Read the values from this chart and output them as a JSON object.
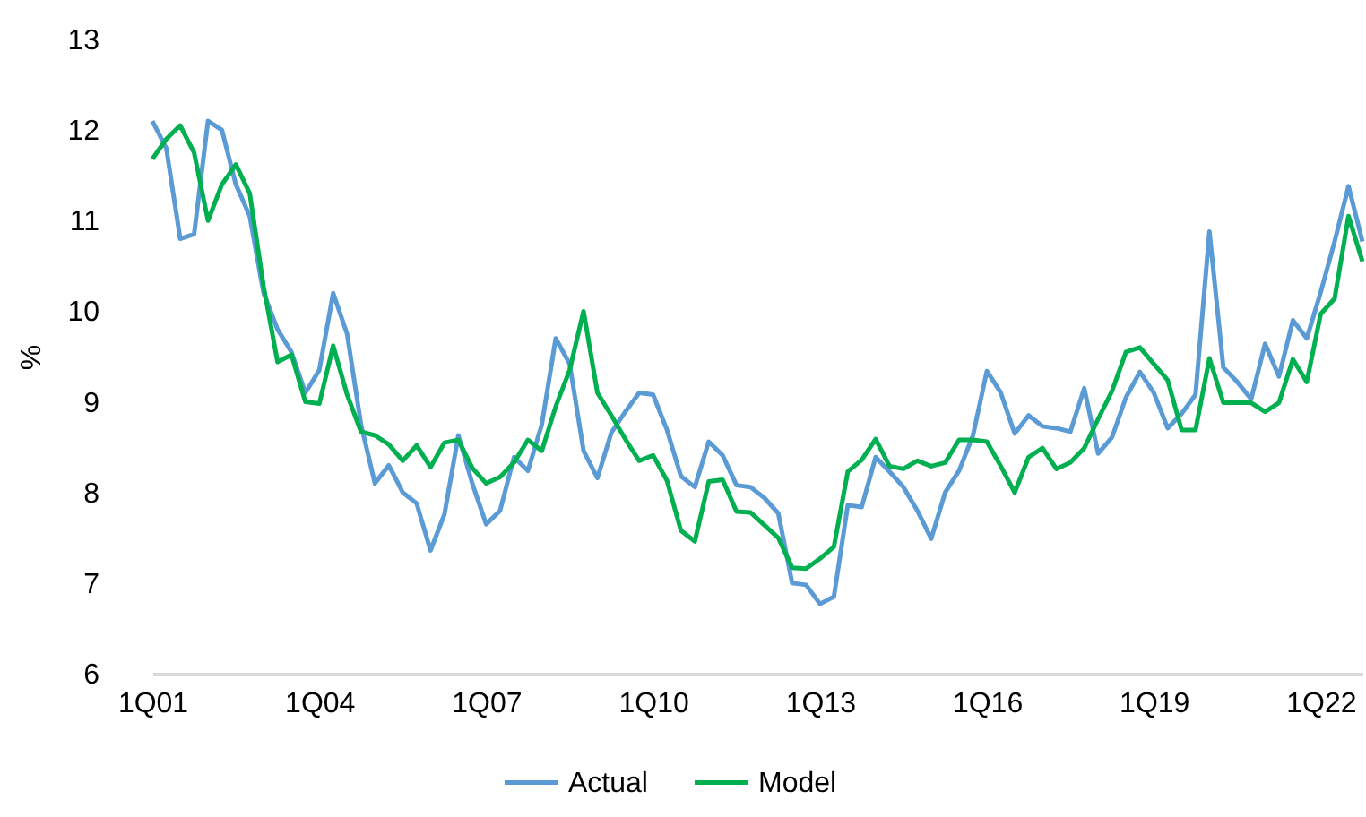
{
  "chart_data": {
    "type": "line",
    "ylabel": "%",
    "categories": [
      "1Q01",
      null,
      null,
      null,
      null,
      null,
      null,
      null,
      null,
      null,
      null,
      null,
      "1Q04",
      null,
      null,
      null,
      null,
      null,
      null,
      null,
      null,
      null,
      null,
      null,
      "1Q07",
      null,
      null,
      null,
      null,
      null,
      null,
      null,
      null,
      null,
      null,
      null,
      "1Q10",
      null,
      null,
      null,
      null,
      null,
      null,
      null,
      null,
      null,
      null,
      null,
      "1Q13",
      null,
      null,
      null,
      null,
      null,
      null,
      null,
      null,
      null,
      null,
      null,
      "1Q16",
      null,
      null,
      null,
      null,
      null,
      null,
      null,
      null,
      null,
      null,
      null,
      "1Q19",
      null,
      null,
      null,
      null,
      null,
      null,
      null,
      null,
      null,
      null,
      null,
      "1Q22",
      null,
      null,
      null
    ],
    "series": [
      {
        "name": "Actual",
        "color": "#5b9bd5",
        "values": [
          12.1,
          11.8,
          10.8,
          10.85,
          12.1,
          12.0,
          11.4,
          11.05,
          10.2,
          9.8,
          9.55,
          9.1,
          9.35,
          10.2,
          9.75,
          8.75,
          8.1,
          8.3,
          8.0,
          7.88,
          7.36,
          7.76,
          8.63,
          8.1,
          7.65,
          7.8,
          8.39,
          8.24,
          8.75,
          9.7,
          9.42,
          8.46,
          8.16,
          8.66,
          8.89,
          9.1,
          9.08,
          8.69,
          8.18,
          8.06,
          8.56,
          8.41,
          8.08,
          8.06,
          7.94,
          7.77,
          7.0,
          6.98,
          6.77,
          6.85,
          7.86,
          7.84,
          8.39,
          8.23,
          8.06,
          7.8,
          7.49,
          8.0,
          8.24,
          8.63,
          9.34,
          9.1,
          8.65,
          8.85,
          8.73,
          8.71,
          8.67,
          9.15,
          8.43,
          8.61,
          9.05,
          9.33,
          9.1,
          8.71,
          8.87,
          9.08,
          10.88,
          9.38,
          9.22,
          9.03,
          9.64,
          9.28,
          9.9,
          9.7,
          10.21,
          10.77,
          11.38,
          10.77
        ]
      },
      {
        "name": "Model",
        "color": "#00b050",
        "values": [
          11.68,
          11.9,
          12.05,
          11.75,
          11.0,
          11.4,
          11.62,
          11.3,
          10.27,
          9.44,
          9.52,
          9.0,
          8.98,
          9.62,
          9.08,
          8.67,
          8.63,
          8.53,
          8.35,
          8.52,
          8.28,
          8.55,
          8.58,
          8.27,
          8.1,
          8.17,
          8.33,
          8.58,
          8.46,
          8.95,
          9.35,
          10.0,
          9.1,
          8.85,
          8.59,
          8.35,
          8.41,
          8.13,
          7.58,
          7.46,
          8.12,
          8.14,
          7.79,
          7.78,
          7.64,
          7.5,
          7.17,
          7.16,
          7.27,
          7.4,
          8.23,
          8.36,
          8.59,
          8.29,
          8.26,
          8.35,
          8.29,
          8.33,
          8.58,
          8.58,
          8.56,
          8.29,
          8.0,
          8.39,
          8.49,
          8.26,
          8.33,
          8.49,
          8.81,
          9.12,
          9.55,
          9.6,
          9.42,
          9.24,
          8.69,
          8.69,
          9.48,
          8.99,
          8.99,
          8.99,
          8.89,
          8.99,
          9.47,
          9.22,
          9.97,
          10.14,
          11.05,
          10.55
        ]
      }
    ],
    "ylim": [
      6,
      13
    ],
    "yticks": [
      6,
      7,
      8,
      9,
      10,
      11,
      12,
      13
    ],
    "grid": false,
    "legend": "bottom"
  }
}
